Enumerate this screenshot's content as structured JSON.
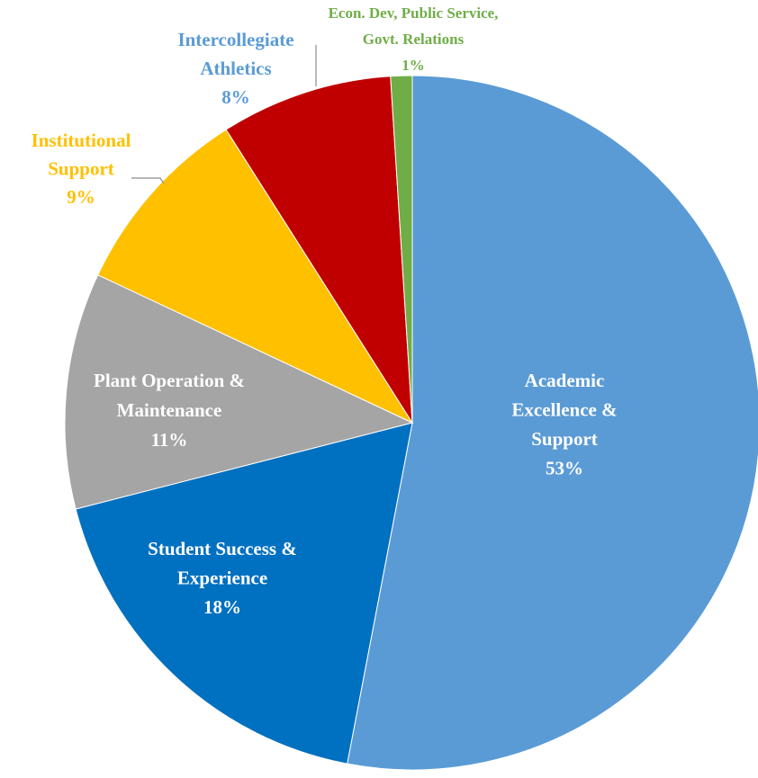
{
  "chart_data": {
    "type": "pie",
    "categories": [
      [
        "Academic",
        "Excellence &",
        "Support"
      ],
      [
        "Student Success &",
        "Experience"
      ],
      [
        "Plant Operation &",
        "Maintenance"
      ],
      [
        "Institutional",
        "Support"
      ],
      [
        "Intercollegiate",
        "Athletics"
      ],
      [
        "Econ. Dev, Public Service,",
        "Govt. Relations"
      ]
    ],
    "values": [
      53,
      18,
      11,
      9,
      8,
      1
    ],
    "value_labels": [
      "53%",
      "18%",
      "11%",
      "9%",
      "8%",
      "1%"
    ],
    "colors": [
      "#5b9bd5",
      "#0070c0",
      "#a5a5a5",
      "#ffc000",
      "#c00000",
      "#70ad47"
    ],
    "label_colors": [
      "#ffffff",
      "#ffffff",
      "#ffffff",
      "#ffc000",
      "#5b9bd5",
      "#70ad47"
    ]
  }
}
